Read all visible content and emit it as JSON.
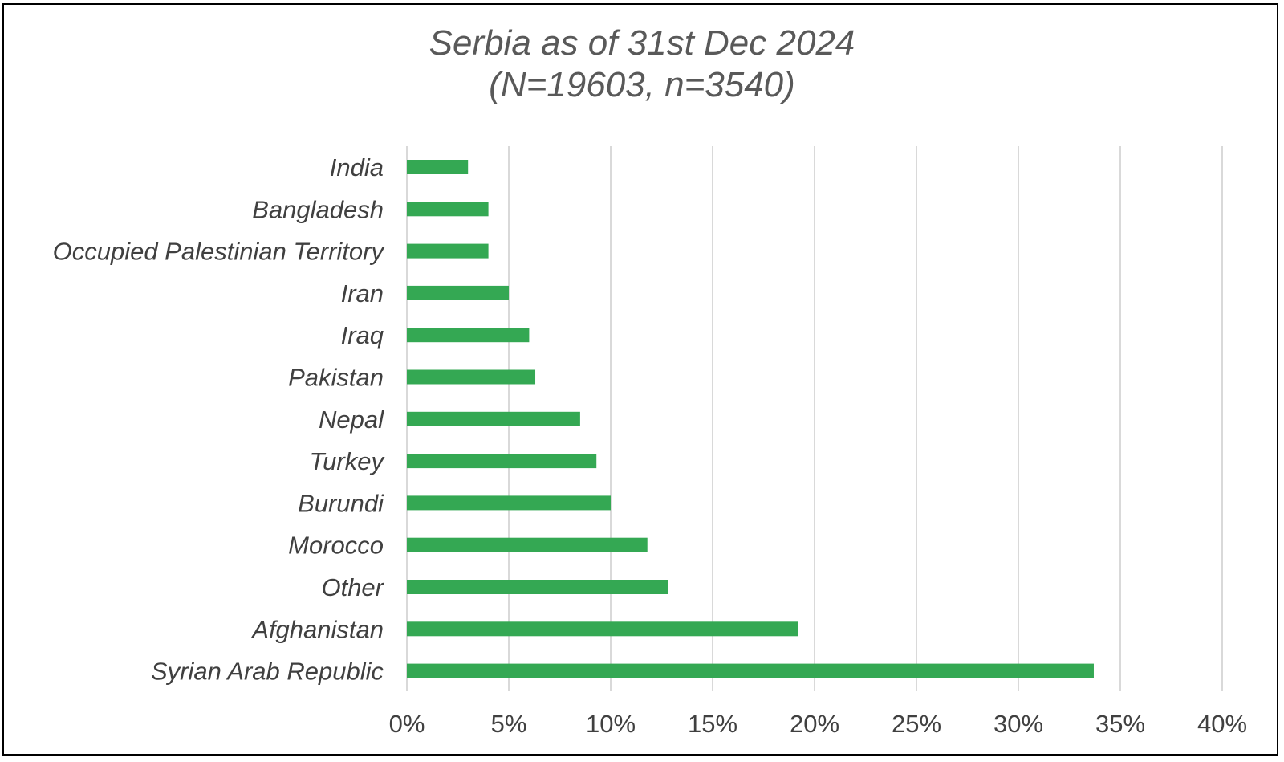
{
  "chart_data": {
    "type": "bar",
    "orientation": "horizontal",
    "title": "Serbia as of 31st Dec 2024",
    "subtitle": "(N=19603, n=3540)",
    "categories": [
      "India",
      "Bangladesh",
      "Occupied Palestinian Territory",
      "Iran",
      "Iraq",
      "Pakistan",
      "Nepal",
      "Turkey",
      "Burundi",
      "Morocco",
      "Other",
      "Afghanistan",
      "Syrian Arab Republic"
    ],
    "values": [
      3.0,
      4.0,
      4.0,
      5.0,
      6.0,
      6.3,
      8.5,
      9.3,
      10.0,
      11.8,
      12.8,
      19.2,
      33.7
    ],
    "unit": "%",
    "xlim": [
      0,
      40
    ],
    "xticks": [
      0,
      5,
      10,
      15,
      20,
      25,
      30,
      35,
      40
    ],
    "xtick_labels": [
      "0%",
      "5%",
      "10%",
      "15%",
      "20%",
      "25%",
      "30%",
      "35%",
      "40%"
    ],
    "xlabel": "",
    "ylabel": "",
    "grid": "vertical",
    "legend": "none",
    "bar_color": "#34a853"
  }
}
